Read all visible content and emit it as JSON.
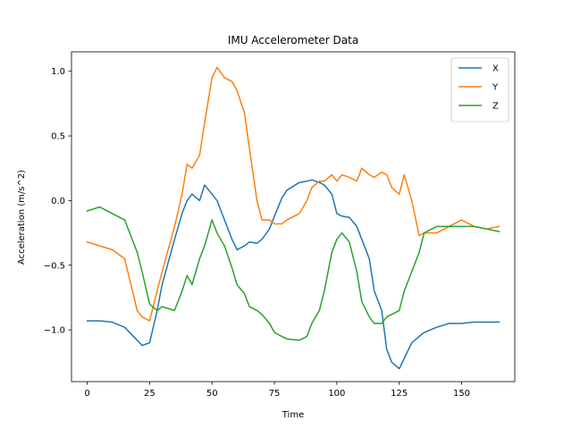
{
  "chart_data": {
    "type": "line",
    "title": "IMU Accelerometer Data",
    "xlabel": "Time",
    "ylabel": "Acceleration (m/s^2)",
    "xlim": [
      -6.3,
      171.3
    ],
    "ylim": [
      -1.4,
      1.15
    ],
    "xticks": [
      0,
      25,
      50,
      75,
      100,
      125,
      150
    ],
    "yticks": [
      -1.0,
      -0.5,
      0.0,
      0.5,
      1.0
    ],
    "ytick_labels": [
      "−1.0",
      "−0.5",
      "0.0",
      "0.5",
      "1.0"
    ],
    "grid": false,
    "legend": "top-right",
    "x": [
      0,
      5,
      10,
      15,
      20,
      22,
      25,
      28,
      30,
      35,
      38,
      40,
      42,
      45,
      47,
      50,
      52,
      55,
      58,
      60,
      63,
      65,
      68,
      70,
      73,
      75,
      78,
      80,
      85,
      88,
      90,
      93,
      95,
      98,
      100,
      102,
      105,
      108,
      110,
      113,
      115,
      118,
      120,
      122,
      125,
      127,
      130,
      133,
      135,
      140,
      145,
      150,
      155,
      160,
      165
    ],
    "series": [
      {
        "name": "X",
        "color": "#1f77b4",
        "values": [
          -0.93,
          -0.93,
          -0.94,
          -0.98,
          -1.08,
          -1.12,
          -1.1,
          -0.85,
          -0.65,
          -0.3,
          -0.1,
          0.0,
          0.05,
          0.0,
          0.12,
          0.05,
          0.0,
          -0.15,
          -0.3,
          -0.38,
          -0.35,
          -0.32,
          -0.33,
          -0.3,
          -0.22,
          -0.12,
          0.02,
          0.08,
          0.14,
          0.15,
          0.16,
          0.14,
          0.12,
          0.05,
          -0.1,
          -0.12,
          -0.13,
          -0.2,
          -0.3,
          -0.45,
          -0.7,
          -0.85,
          -1.15,
          -1.25,
          -1.3,
          -1.22,
          -1.1,
          -1.05,
          -1.02,
          -0.98,
          -0.95,
          -0.95,
          -0.94,
          -0.94,
          -0.94
        ]
      },
      {
        "name": "Y",
        "color": "#ff7f0e",
        "values": [
          -0.32,
          -0.35,
          -0.38,
          -0.45,
          -0.85,
          -0.9,
          -0.93,
          -0.7,
          -0.55,
          -0.2,
          0.05,
          0.28,
          0.25,
          0.35,
          0.6,
          0.95,
          1.03,
          0.95,
          0.92,
          0.85,
          0.68,
          0.4,
          0.0,
          -0.15,
          -0.15,
          -0.18,
          -0.18,
          -0.15,
          -0.1,
          0.0,
          0.1,
          0.15,
          0.15,
          0.2,
          0.15,
          0.2,
          0.18,
          0.15,
          0.25,
          0.2,
          0.18,
          0.22,
          0.2,
          0.1,
          0.05,
          0.2,
          0.0,
          -0.27,
          -0.25,
          -0.25,
          -0.2,
          -0.15,
          -0.2,
          -0.22,
          -0.2
        ]
      },
      {
        "name": "Z",
        "color": "#2ca02c",
        "values": [
          -0.08,
          -0.05,
          -0.1,
          -0.15,
          -0.4,
          -0.55,
          -0.8,
          -0.85,
          -0.82,
          -0.85,
          -0.7,
          -0.58,
          -0.65,
          -0.45,
          -0.35,
          -0.15,
          -0.25,
          -0.35,
          -0.52,
          -0.65,
          -0.72,
          -0.82,
          -0.85,
          -0.88,
          -0.95,
          -1.02,
          -1.05,
          -1.07,
          -1.08,
          -1.05,
          -0.95,
          -0.85,
          -0.7,
          -0.4,
          -0.3,
          -0.25,
          -0.32,
          -0.55,
          -0.78,
          -0.9,
          -0.95,
          -0.95,
          -0.9,
          -0.88,
          -0.85,
          -0.7,
          -0.55,
          -0.4,
          -0.25,
          -0.2,
          -0.2,
          -0.2,
          -0.2,
          -0.22,
          -0.24
        ]
      }
    ]
  }
}
